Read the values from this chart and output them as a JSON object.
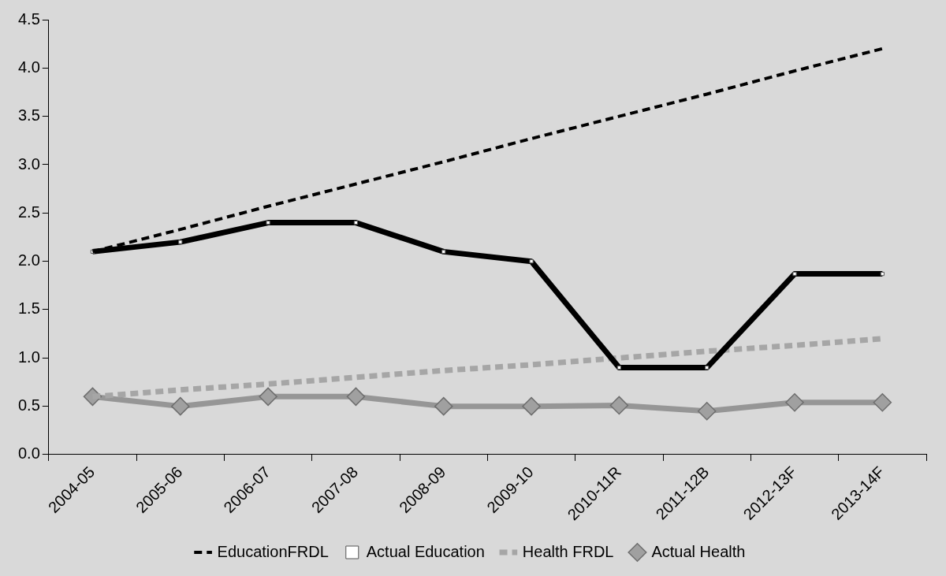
{
  "chart_data": {
    "type": "line",
    "categories": [
      "2004-05",
      "2005-06",
      "2006-07",
      "2007-08",
      "2008-09",
      "2009-10",
      "2010-11R",
      "2011-12B",
      "2012-13F",
      "2013-14F"
    ],
    "series": [
      {
        "name": "EducationFRDL",
        "color": "#000000",
        "line_style": "dashed",
        "marker": "none",
        "values": [
          2.1,
          2.33,
          2.57,
          2.8,
          3.03,
          3.27,
          3.5,
          3.73,
          3.97,
          4.2
        ]
      },
      {
        "name": "Actual Education",
        "color": "#000000",
        "line_style": "solid",
        "marker": "square",
        "values": [
          2.1,
          2.2,
          2.4,
          2.4,
          2.1,
          2.0,
          0.9,
          0.9,
          1.87,
          1.87
        ]
      },
      {
        "name": "Health FRDL",
        "color": "#a6a6a6",
        "line_style": "dashed",
        "marker": "none",
        "values": [
          0.6,
          0.67,
          0.73,
          0.8,
          0.87,
          0.93,
          1.0,
          1.07,
          1.13,
          1.2
        ]
      },
      {
        "name": "Actual Health",
        "color": "#969696",
        "line_style": "solid",
        "marker": "diamond",
        "values": [
          0.6,
          0.5,
          0.6,
          0.6,
          0.5,
          0.5,
          0.51,
          0.45,
          0.54,
          0.54
        ]
      }
    ],
    "ylim": [
      0,
      4.5
    ],
    "yticks": [
      {
        "value": 0,
        "label": "0.0"
      },
      {
        "value": 0.5,
        "label": "0.5"
      },
      {
        "value": 1,
        "label": "1.0"
      },
      {
        "value": 1.5,
        "label": "1.5"
      },
      {
        "value": 2,
        "label": "2.0"
      },
      {
        "value": 2.5,
        "label": "2.5"
      },
      {
        "value": 3,
        "label": "3.0"
      },
      {
        "value": 3.5,
        "label": "3.5"
      },
      {
        "value": 4,
        "label": "4.0"
      },
      {
        "value": 4.5,
        "label": "4.5"
      }
    ],
    "grid": false,
    "legend": "bottom"
  }
}
